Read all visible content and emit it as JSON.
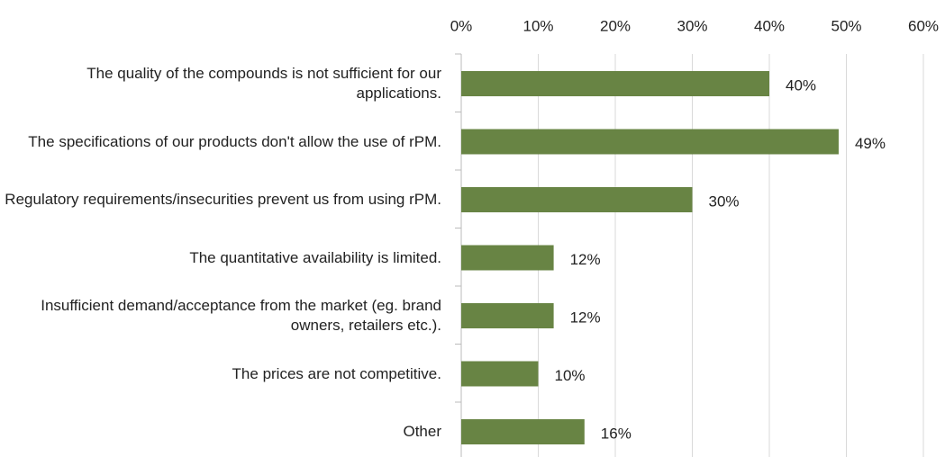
{
  "chart_data": {
    "type": "bar",
    "orientation": "horizontal",
    "categories": [
      "The quality of the compounds is not sufficient for our applications.",
      "The specifications of our products don't allow the use of rPM.",
      "Regulatory requirements/insecurities prevent us from using rPM.",
      "The quantitative availability is limited.",
      "Insufficient demand/acceptance from the market (eg. brand owners, retailers etc.).",
      "The prices are not competitive.",
      "Other"
    ],
    "values": [
      40,
      49,
      30,
      12,
      12,
      10,
      16
    ],
    "value_labels": [
      "40%",
      "49%",
      "30%",
      "12%",
      "12%",
      "10%",
      "16%"
    ],
    "color": "#688444",
    "xlim": [
      0,
      60
    ],
    "xticks": [
      {
        "value": 0,
        "label": "0%"
      },
      {
        "value": 10,
        "label": "10%"
      },
      {
        "value": 20,
        "label": "20%"
      },
      {
        "value": 30,
        "label": "30%"
      },
      {
        "value": 40,
        "label": "40%"
      },
      {
        "value": 50,
        "label": "50%"
      },
      {
        "value": 60,
        "label": "60%"
      }
    ],
    "grid": true
  }
}
